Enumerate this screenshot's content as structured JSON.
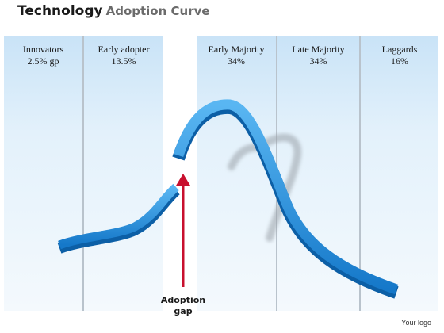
{
  "title": {
    "bold": "Technology",
    "light": "Adoption Curve"
  },
  "segments": [
    {
      "name": "Innovators",
      "value": "2.5% gp"
    },
    {
      "name": "Early adopter",
      "value": "13.5%"
    },
    {
      "name": "Early Majority",
      "value": "34%"
    },
    {
      "name": "Late Majority",
      "value": "34%"
    },
    {
      "name": "Laggards",
      "value": "16%"
    }
  ],
  "gap": {
    "line1": "Adoption",
    "line2": "gap"
  },
  "logo": "Your logo",
  "colors": {
    "column": "#d6ebf9",
    "ribbon": "#1e8fe0",
    "arrow": "#c8102e",
    "divider": "#b9c3cc"
  }
}
